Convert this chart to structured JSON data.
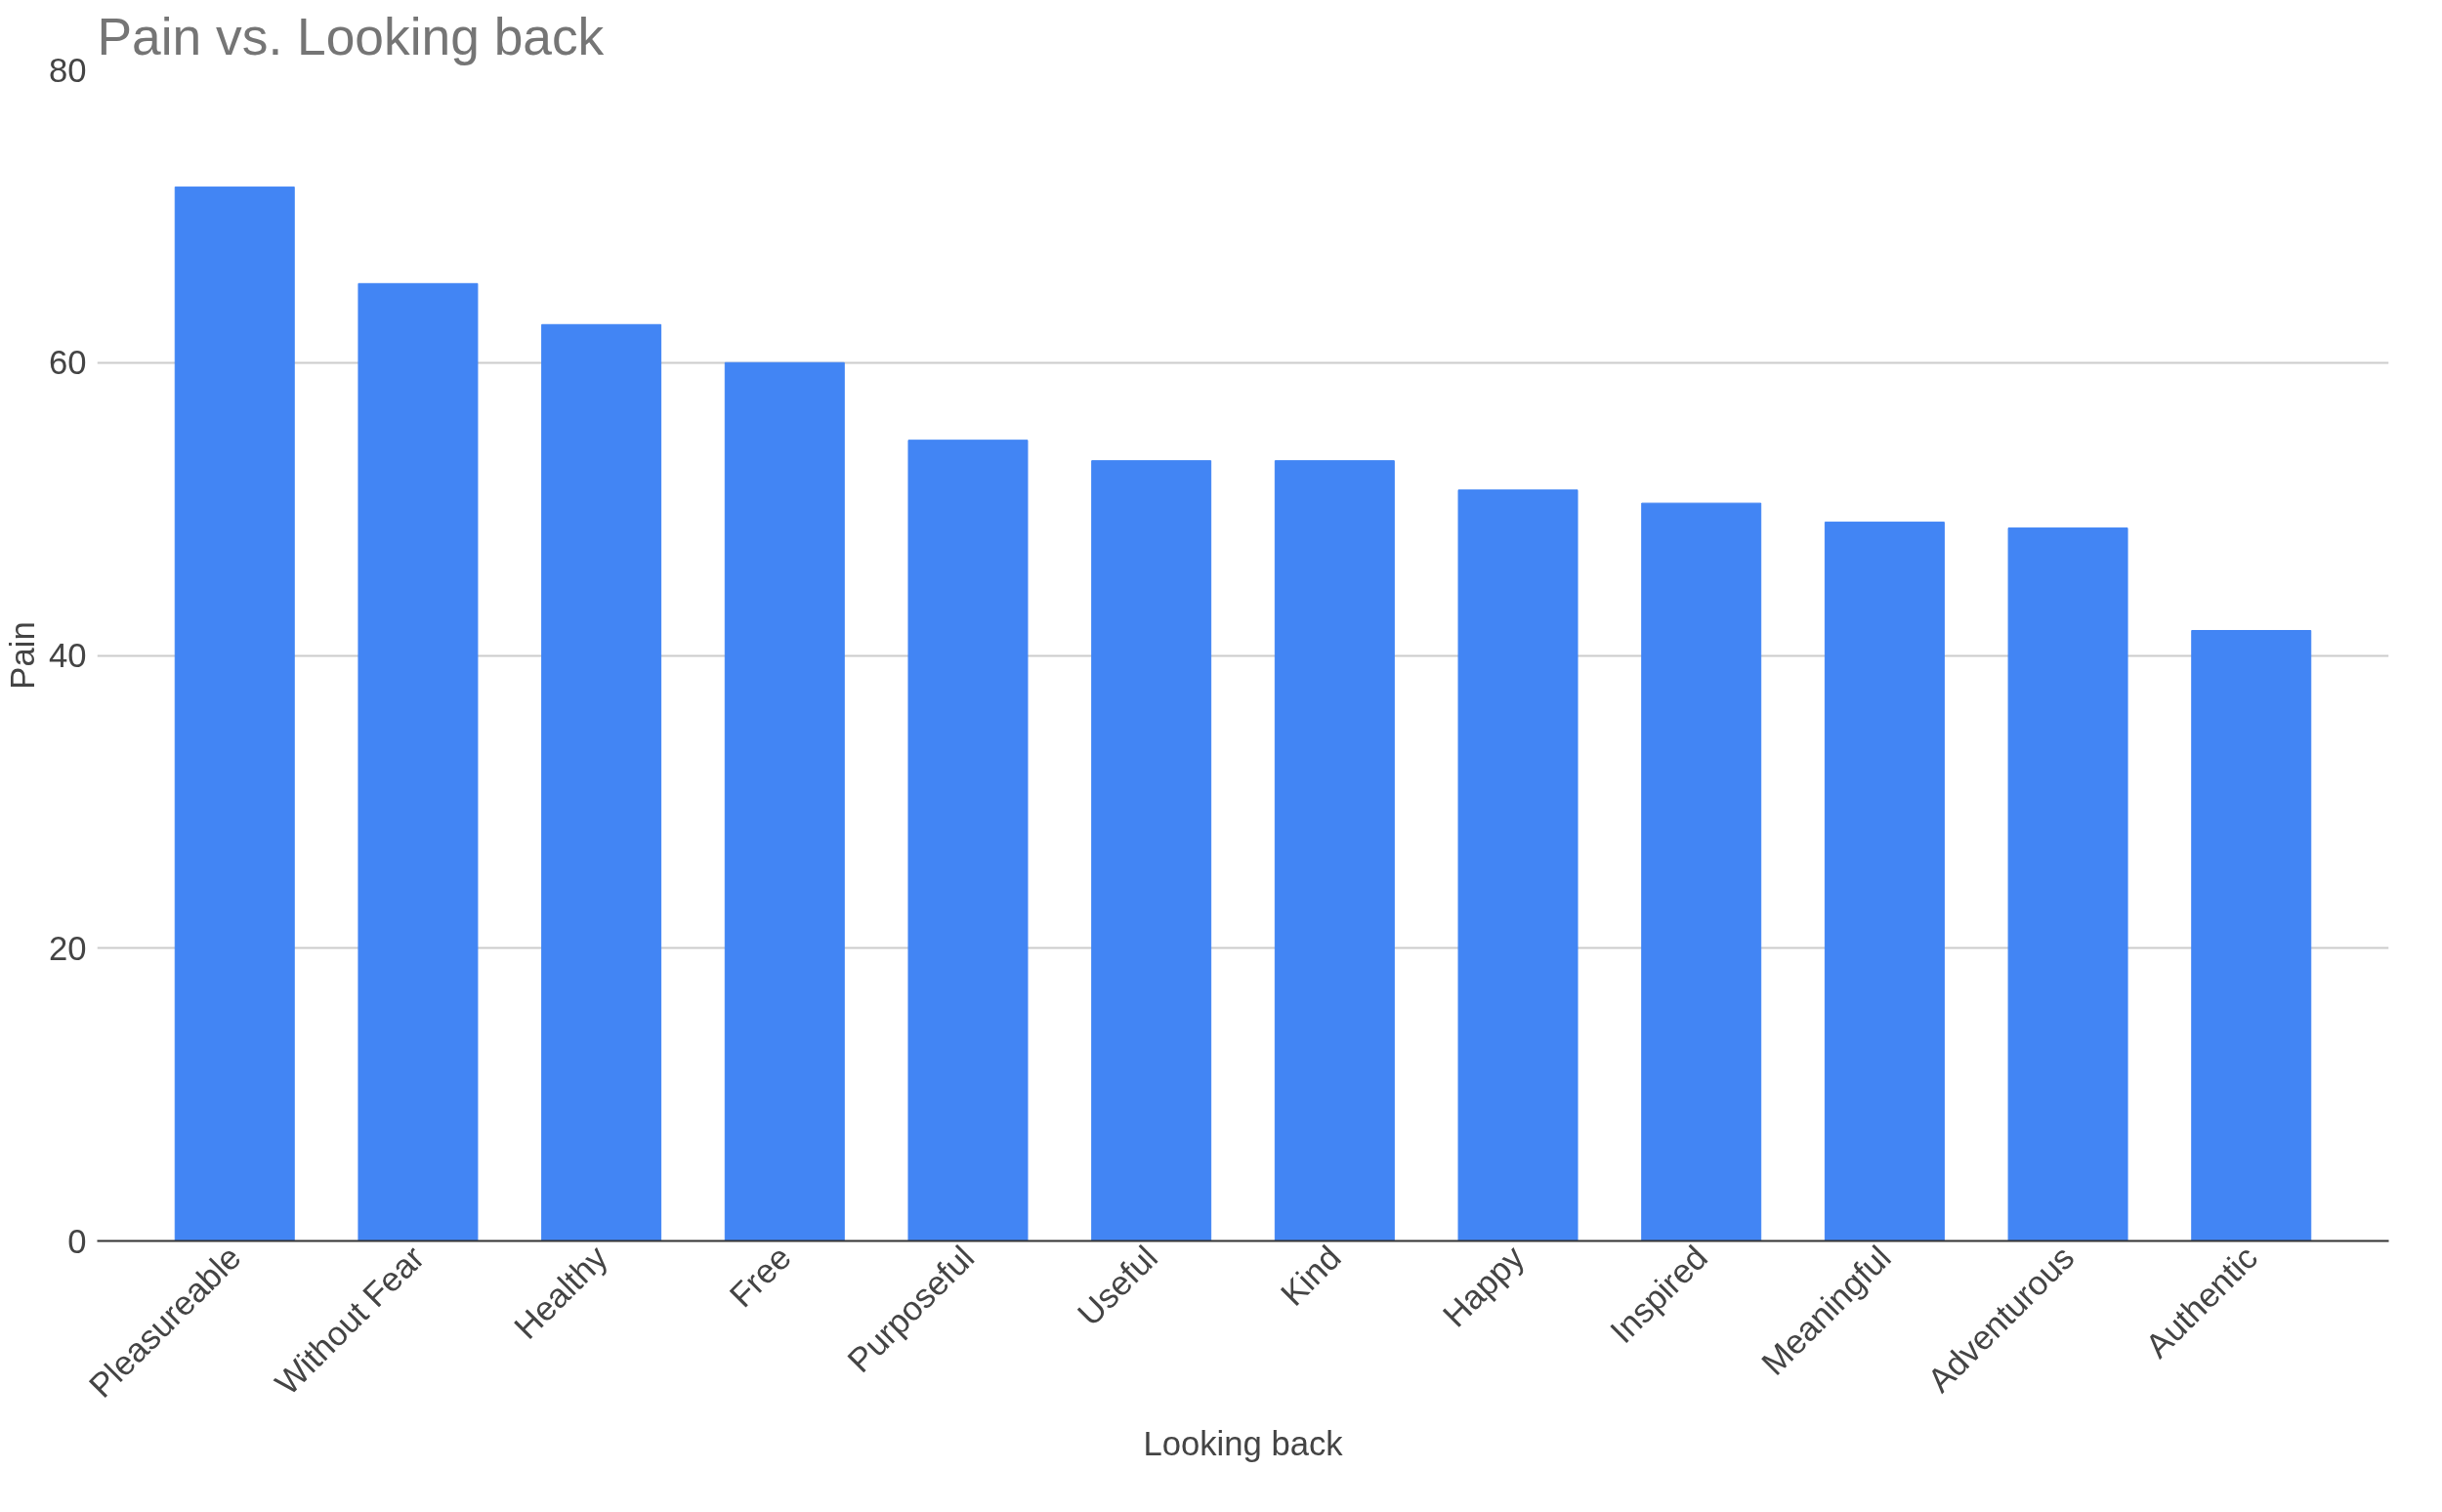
{
  "chart_data": {
    "type": "bar",
    "title": "Pain vs. Looking back",
    "xlabel": "Looking back",
    "ylabel": "Pain",
    "categories": [
      "Pleasureable",
      "Without Fear",
      "Healthy",
      "Free",
      "Purposeful",
      "Useful",
      "Kind",
      "Happy",
      "Inspired",
      "Meaningful",
      "Adventurous",
      "Authentic"
    ],
    "values": [
      72,
      65.4,
      62.6,
      60,
      54.7,
      53.3,
      53.3,
      51.3,
      50.4,
      49.1,
      48.7,
      41.7
    ],
    "color": "#4285f4",
    "ylim": [
      0,
      80
    ],
    "yticks": [
      0,
      20,
      40,
      60,
      80
    ],
    "grid": "y"
  }
}
